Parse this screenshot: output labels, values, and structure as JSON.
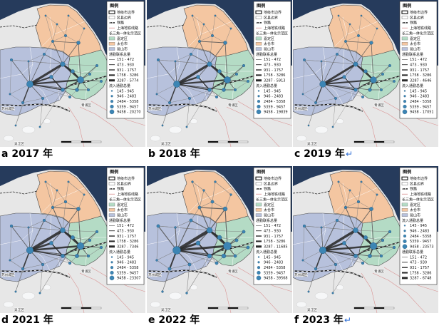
{
  "colors": {
    "sea": "#263b5c",
    "land": "#e7e7e7",
    "jiading": "#b4dbc5",
    "taicang": "#f4c6a1",
    "kunshan": "#b7c1dc",
    "lake": "#f6f7f8",
    "node": "#3c85b4",
    "node_stroke": "#1d4e72",
    "flow": "#2a2a2a",
    "metro": "#d98f8f",
    "boundary": "#4a4a4a",
    "caption_mark": "#2f6fd6"
  },
  "legend": {
    "title": "图例",
    "city_boundary": "地级市边界",
    "county_boundary": "区县边界",
    "railway": "铁路",
    "metro": "上海地铁线路",
    "demo_zone": "长三角一体化示范区",
    "jiading": "嘉定区",
    "taicang": "太仓市",
    "kunshan": "昆山市",
    "flow_title": "通勤联系总量",
    "node_title": "流入通勤总量"
  },
  "map_labels": {
    "suzhou": "苏州城区",
    "wujiang": "吴江区",
    "qingpu": "青浦区"
  },
  "panels": [
    {
      "caption": "a 2017 年",
      "nodes_first": false,
      "flow_bins": [
        "151 - 472",
        "473 - 930",
        "931 - 1757",
        "1758 - 3286",
        "3287 - 5774"
      ],
      "node_bins": [
        "145 - 945",
        "946 - 2483",
        "2484 - 5358",
        "5359 - 9457",
        "9458 - 20270"
      ]
    },
    {
      "caption": "b 2018 年",
      "nodes_first": false,
      "flow_bins": [
        "151 - 472",
        "473 - 930",
        "931 - 1757",
        "1758 - 3286",
        "3287 - 5913"
      ],
      "node_bins": [
        "145 - 945",
        "946 - 2483",
        "2484 - 5358",
        "5359 - 9457",
        "9458 - 19839"
      ]
    },
    {
      "caption": "c 2019 年",
      "mark": "↵",
      "nodes_first": false,
      "flow_bins": [
        "151 - 472",
        "473 - 930",
        "931 - 1757",
        "1758 - 3286",
        "3287 - 4646"
      ],
      "node_bins": [
        "145 - 945",
        "946 - 2483",
        "2484 - 5358",
        "5359 - 9457",
        "9458 - 17051"
      ]
    },
    {
      "caption": "d 2021 年",
      "nodes_first": false,
      "flow_bins": [
        "151 - 472",
        "473 - 930",
        "931 - 1757",
        "1758 - 3286",
        "3287 - 7346"
      ],
      "node_bins": [
        "145 - 945",
        "946 - 2483",
        "2484 - 5358",
        "5359 - 9457",
        "9458 - 23307"
      ]
    },
    {
      "caption": "e 2022 年",
      "nodes_first": false,
      "flow_bins": [
        "151 - 472",
        "473 - 930",
        "931 - 1757",
        "1758 - 3286",
        "3287 - 11685"
      ],
      "node_bins": [
        "145 - 945",
        "946 - 2483",
        "2484 - 5358",
        "5359 - 9457",
        "9458 - 39568"
      ]
    },
    {
      "caption": "f 2023 年",
      "mark": "↵",
      "nodes_first": true,
      "flow_bins": [
        "151 - 472",
        "473 - 930",
        "931 - 1757",
        "1758 - 3286",
        "3287 - 6748"
      ],
      "node_bins": [
        "145 - 945",
        "946 - 2483",
        "2484 - 5358",
        "5359 - 9457",
        "9458 - 23573"
      ]
    }
  ]
}
